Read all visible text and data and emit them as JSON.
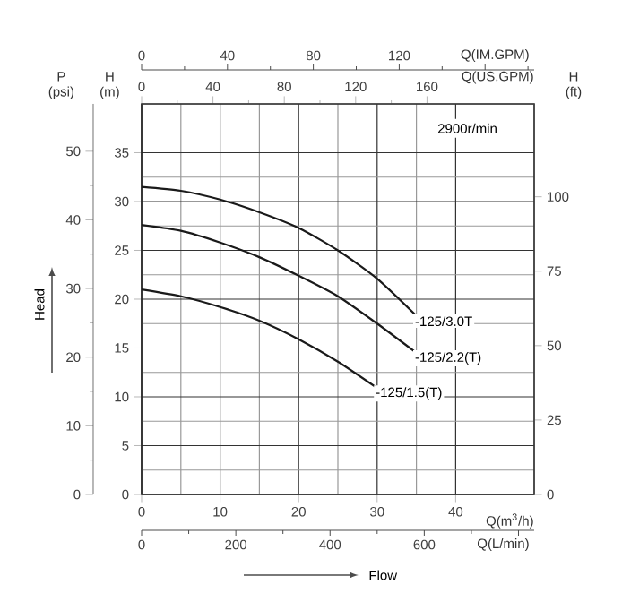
{
  "chart_data": {
    "type": "line",
    "xlabel": "Q(m$^{3}$/h)",
    "ylabel": "H (m)",
    "y2label": "H (ft)",
    "y3label": "P (psi)",
    "x2label": "Q(US.GPM)",
    "xlim": [
      0,
      50
    ],
    "xticks": [
      0,
      10,
      20,
      30,
      40
    ],
    "ylim": [
      0,
      40
    ],
    "yticks": [
      0,
      5,
      10,
      15,
      20,
      25,
      30,
      35
    ],
    "y2lim": [
      0,
      131.2
    ],
    "y2ticks": [
      0,
      25,
      50,
      75,
      100
    ],
    "y3lim": [
      0,
      56.9
    ],
    "y3ticks": [
      0,
      10,
      20,
      30,
      40,
      50
    ],
    "x2lim": [
      0,
      220.1
    ],
    "x2ticks": [
      0,
      40,
      80,
      120,
      160
    ],
    "grid": true,
    "legend": false,
    "marker": "none",
    "line_style": "solid",
    "annotations": [
      "2900r/min",
      "Head",
      "Flow",
      "Q(IM.GPM)",
      "0",
      "40",
      "80",
      "120",
      "Q(L/min)",
      "0",
      "200",
      "400",
      "600"
    ],
    "series": [
      {
        "name": "-125/3.0T",
        "color": "#1a1a1a",
        "x": [
          0,
          5,
          10,
          15,
          20,
          25,
          30,
          35
        ],
        "values": [
          31.5,
          31.1,
          30.2,
          28.9,
          27.3,
          25.0,
          22.1,
          18.3
        ]
      },
      {
        "name": "-125/2.2(T)",
        "color": "#1a1a1a",
        "x": [
          0,
          5,
          10,
          15,
          20,
          25,
          30,
          35
        ],
        "values": [
          27.6,
          27.0,
          25.8,
          24.3,
          22.4,
          20.3,
          17.5,
          14.5
        ]
      },
      {
        "name": "-125/1.5(T)",
        "color": "#1a1a1a",
        "x": [
          0,
          5,
          10,
          15,
          20,
          25,
          30
        ],
        "values": [
          21.0,
          20.3,
          19.2,
          17.8,
          15.9,
          13.6,
          10.9
        ]
      }
    ]
  }
}
